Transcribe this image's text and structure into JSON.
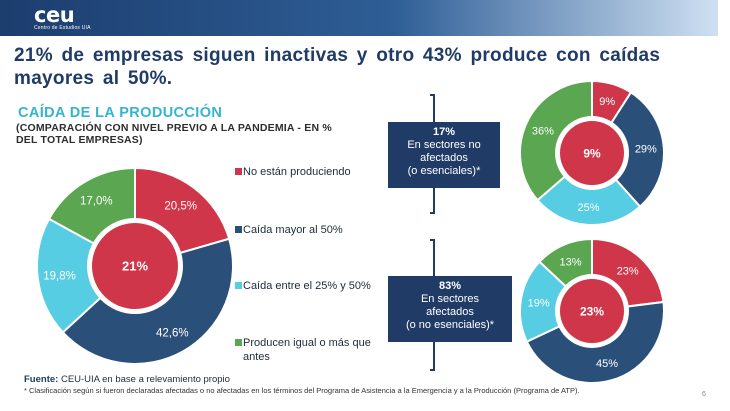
{
  "logo": {
    "main": "ceu",
    "sub": "Centro de Estudios UIA"
  },
  "headline": "21% de empresas siguen inactivas y otro 43% produce con caídas mayores al 50%.",
  "section": {
    "title": "CAÍDA DE LA PRODUCCIÓN",
    "subtitle": "(COMPARACIÓN CON NIVEL PREVIO A LA PANDEMIA - EN % DEL TOTAL EMPRESAS)"
  },
  "colors": {
    "red": "#d0364a",
    "navy": "#2a4f79",
    "cyan": "#57cde4",
    "green": "#5aa651",
    "box": "#1f3b66"
  },
  "chart_data": [
    {
      "type": "pie",
      "title": "CAÍDA DE LA PRODUCCIÓN",
      "center_label": "21%",
      "categories": [
        "No están produciendo",
        "Caída mayor al 50%",
        "Caída entre el 25% y 50%",
        "Producen igual o más que antes"
      ],
      "values": [
        20.5,
        42.6,
        19.8,
        17.0
      ],
      "labels": [
        "20,5%",
        "42,6%",
        "19,8%",
        "17,0%"
      ],
      "legend": "right"
    },
    {
      "type": "pie",
      "title": "",
      "center_label": "9%",
      "categories": [
        "No están produciendo",
        "Caída mayor al 50%",
        "Caída entre el 25% y 50%",
        "Producen igual o más que antes"
      ],
      "values": [
        9,
        29,
        25,
        36
      ],
      "labels": [
        "9%",
        "29%",
        "25%",
        "36%"
      ]
    },
    {
      "type": "pie",
      "title": "",
      "center_label": "23%",
      "categories": [
        "No están produciendo",
        "Caída mayor al 50%",
        "Caída entre el 25% y 50%",
        "Producen igual o más que antes"
      ],
      "values": [
        23,
        45,
        19,
        13
      ],
      "labels": [
        "23%",
        "45%",
        "19%",
        "13%"
      ]
    }
  ],
  "legend": {
    "items": [
      {
        "label": "No están produciendo",
        "color": "#d0364a"
      },
      {
        "label": "Caída mayor al 50%",
        "color": "#2a4f79"
      },
      {
        "label": "Caída entre el 25% y 50%",
        "color": "#57cde4"
      },
      {
        "label": "Producen igual o más que antes",
        "color": "#5aa651"
      }
    ]
  },
  "boxes": {
    "top": {
      "pct": "17%",
      "line1": "En sectores no",
      "line2": "afectados",
      "line3": "(o esenciales)*"
    },
    "bottom": {
      "pct": "83%",
      "line1": "En sectores",
      "line2": "afectados",
      "line3": "(o no esenciales)*"
    }
  },
  "footer": {
    "source_label": "Fuente:",
    "source_text": "CEU-UIA en base a relevamiento propio",
    "note": "* Clasificación según si fueron declaradas afectadas o no afectadas en los términos del Programa de Asistencia a la Emergencia y a la Producción (Programa de ATP).",
    "page": "6"
  }
}
